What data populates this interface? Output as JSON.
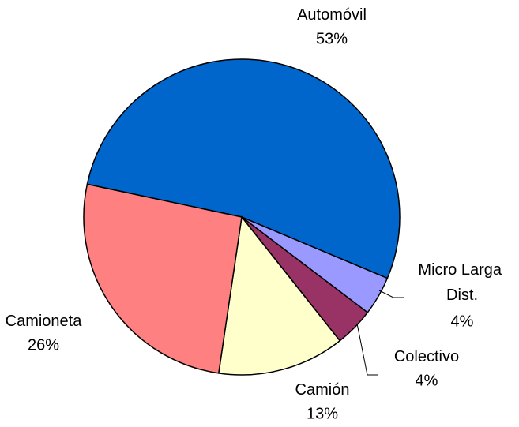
{
  "chart_data": {
    "type": "pie",
    "categories": [
      "Automóvil",
      "Micro Larga Dist.",
      "Colectivo",
      "Camión",
      "Camioneta"
    ],
    "values": [
      53,
      4,
      4,
      13,
      26
    ],
    "value_labels": [
      "53%",
      "4%",
      "4%",
      "13%",
      "26%"
    ],
    "colors": [
      "#0066cc",
      "#9999ff",
      "#993366",
      "#ffffcc",
      "#ff8080"
    ]
  }
}
